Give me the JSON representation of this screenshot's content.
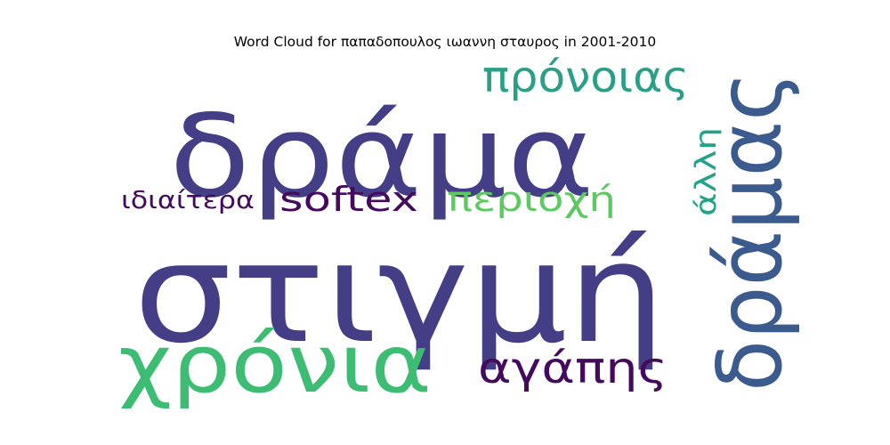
{
  "chart_data": {
    "type": "wordcloud",
    "title": "Word Cloud for παπαδοπουλος ιωαννη σταυρος in 2001-2010",
    "words": [
      {
        "text": "στιγμή",
        "color": "#433e85"
      },
      {
        "text": "δράμα",
        "color": "#433e85"
      },
      {
        "text": "δράμας",
        "color": "#3b5a8e"
      },
      {
        "text": "χρόνια",
        "color": "#3dbc74"
      },
      {
        "text": "πρόνοιας",
        "color": "#2a9f86"
      },
      {
        "text": "αγάπης",
        "color": "#440a5c"
      },
      {
        "text": "softex",
        "color": "#440a5c"
      },
      {
        "text": "περιοχή",
        "color": "#5ec962"
      },
      {
        "text": "άλλη",
        "color": "#20a386"
      },
      {
        "text": "ιδιαίτερα",
        "color": "#440a5c"
      }
    ]
  }
}
